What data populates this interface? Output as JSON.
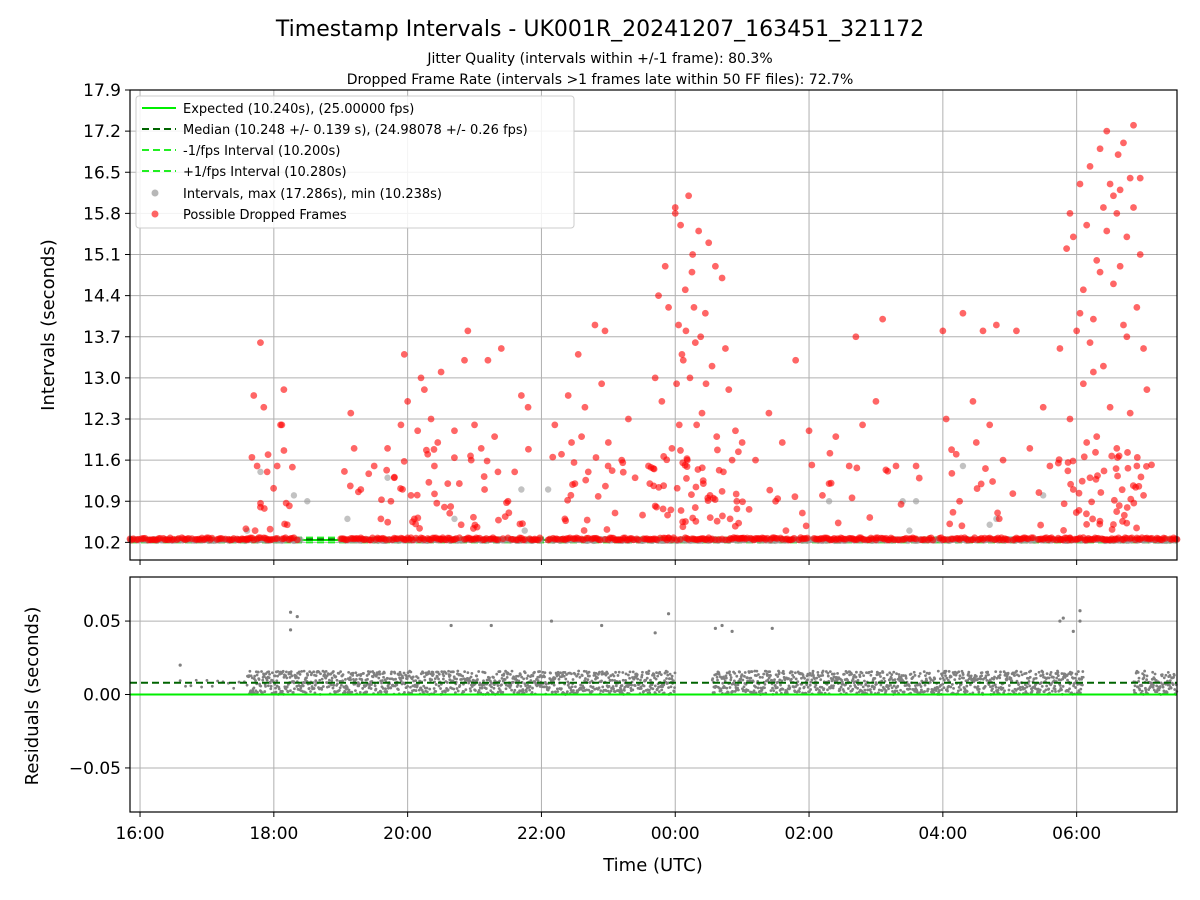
{
  "header": {
    "title": "Timestamp Intervals - UK001R_20241207_163451_321172",
    "subtitle_1": "Jitter Quality (intervals within +/-1 frame): 80.3%",
    "subtitle_2": "Dropped Frame Rate (intervals >1 frames late within 50 FF files): 72.7%"
  },
  "colors": {
    "expected": "#00ee00",
    "median": "#006400",
    "interval_band": "#22ee22",
    "intervals": "#999999",
    "dropped": "#ff0000",
    "residuals": "#808080",
    "grid": "#b0b0b0"
  },
  "chart_data": [
    {
      "type": "scatter",
      "panel": "intervals",
      "xlabel": "",
      "ylabel": "Intervals (seconds)",
      "ylim": [
        9.9,
        17.9
      ],
      "yticks": [
        "10.2",
        "10.9",
        "11.6",
        "12.3",
        "13.0",
        "13.7",
        "14.4",
        "15.1",
        "15.8",
        "16.5",
        "17.2",
        "17.9"
      ],
      "grid": true,
      "legend_placement": "top-left",
      "legend": [
        "Expected (10.240s), (25.00000 fps)",
        "Median (10.248 +/- 0.139 s), (24.98078 +/- 0.26 fps)",
        "-1/fps Interval (10.200s)",
        "+1/fps Interval (10.280s)",
        "Intervals, max (17.286s), min (10.238s)",
        "Possible Dropped Frames"
      ],
      "reference_lines": {
        "expected": 10.24,
        "median": 10.248,
        "minus_1_fps": 10.2,
        "plus_1_fps": 10.28
      },
      "summary": {
        "max_interval": 17.286,
        "min_interval": 10.238,
        "median_interval": 10.248,
        "median_std": 0.139,
        "median_fps": 24.98078,
        "median_fps_std": 0.26,
        "expected_fps": 25.0
      },
      "baseline_coverage_hours": [
        [
          15.85,
          17.6
        ],
        [
          17.6,
          18.4
        ],
        [
          19.0,
          20.5
        ],
        [
          20.5,
          22.0
        ],
        [
          22.1,
          23.9
        ],
        [
          23.9,
          25.0
        ],
        [
          25.0,
          27.0
        ],
        [
          27.0,
          27.9
        ],
        [
          27.95,
          29.9
        ],
        [
          29.9,
          31.0
        ],
        [
          31.0,
          31.5
        ]
      ],
      "dropped_frame_clusters": [
        {
          "center_hour": 18.0,
          "points": [
            [
              17.7,
              12.7
            ],
            [
              17.75,
              11.5
            ],
            [
              17.8,
              13.6
            ],
            [
              17.85,
              12.5
            ],
            [
              17.8,
              10.8
            ],
            [
              18.05,
              11.5
            ],
            [
              18.1,
              12.2
            ],
            [
              18.15,
              12.8
            ],
            [
              18.2,
              10.5
            ],
            [
              17.9,
              11.4
            ],
            [
              17.72,
              10.4
            ],
            [
              18.12,
              12.2
            ]
          ]
        },
        {
          "center_hour": 20.0,
          "points": [
            [
              19.15,
              12.4
            ],
            [
              19.2,
              11.8
            ],
            [
              19.3,
              11.1
            ],
            [
              19.5,
              11.5
            ],
            [
              19.6,
              10.6
            ],
            [
              19.7,
              11.8
            ],
            [
              19.8,
              11.3
            ],
            [
              19.9,
              12.2
            ],
            [
              19.95,
              13.4
            ],
            [
              20.0,
              12.6
            ],
            [
              20.05,
              11.0
            ],
            [
              20.1,
              10.6
            ],
            [
              20.15,
              12.1
            ],
            [
              20.2,
              13.0
            ],
            [
              20.3,
              11.7
            ],
            [
              20.35,
              12.3
            ],
            [
              20.4,
              11.5
            ],
            [
              20.5,
              13.1
            ],
            [
              20.55,
              10.8
            ],
            [
              20.6,
              11.2
            ],
            [
              20.7,
              12.1
            ],
            [
              20.8,
              10.5
            ],
            [
              20.85,
              13.3
            ],
            [
              20.9,
              13.8
            ],
            [
              21.0,
              12.2
            ],
            [
              21.1,
              11.8
            ],
            [
              21.2,
              13.3
            ],
            [
              21.3,
              12.0
            ],
            [
              21.4,
              13.5
            ],
            [
              21.5,
              10.9
            ],
            [
              21.6,
              11.4
            ],
            [
              21.7,
              12.7
            ],
            [
              21.8,
              12.5
            ],
            [
              21.35,
              11.4
            ],
            [
              20.25,
              12.8
            ],
            [
              19.75,
              10.9
            ],
            [
              20.45,
              11.9
            ],
            [
              20.95,
              11.6
            ],
            [
              21.15,
              11.1
            ]
          ]
        },
        {
          "center_hour": 22.5,
          "points": [
            [
              22.2,
              12.2
            ],
            [
              22.3,
              11.7
            ],
            [
              22.4,
              12.7
            ],
            [
              22.5,
              11.2
            ],
            [
              22.55,
              13.4
            ],
            [
              22.6,
              12.0
            ],
            [
              22.7,
              11.4
            ],
            [
              22.8,
              13.9
            ],
            [
              22.9,
              12.9
            ],
            [
              23.0,
              11.9
            ],
            [
              23.1,
              10.7
            ],
            [
              23.2,
              11.6
            ],
            [
              23.3,
              12.3
            ],
            [
              23.4,
              11.3
            ],
            [
              22.45,
              11.9
            ],
            [
              22.35,
              10.6
            ],
            [
              22.65,
              12.5
            ],
            [
              22.95,
              13.8
            ]
          ]
        },
        {
          "center_hour": 24.2,
          "points": [
            [
              23.6,
              11.5
            ],
            [
              23.7,
              13.0
            ],
            [
              23.75,
              14.4
            ],
            [
              23.8,
              12.6
            ],
            [
              23.85,
              14.9
            ],
            [
              23.9,
              14.2
            ],
            [
              23.95,
              11.8
            ],
            [
              24.0,
              15.8
            ],
            [
              24.05,
              13.9
            ],
            [
              24.08,
              15.6
            ],
            [
              24.1,
              13.4
            ],
            [
              24.15,
              14.5
            ],
            [
              24.2,
              16.1
            ],
            [
              24.25,
              14.8
            ],
            [
              24.3,
              13.6
            ],
            [
              24.35,
              15.5
            ],
            [
              24.4,
              12.4
            ],
            [
              24.45,
              14.1
            ],
            [
              24.5,
              15.3
            ],
            [
              24.55,
              13.2
            ],
            [
              24.6,
              14.9
            ],
            [
              24.7,
              14.7
            ],
            [
              24.75,
              13.5
            ],
            [
              24.8,
              12.8
            ],
            [
              24.85,
              11.6
            ],
            [
              24.9,
              12.1
            ],
            [
              25.0,
              11.9
            ],
            [
              24.0,
              15.9
            ],
            [
              24.12,
              13.3
            ],
            [
              24.22,
              13.0
            ],
            [
              24.32,
              12.2
            ],
            [
              24.42,
              11.2
            ],
            [
              23.62,
              11.2
            ],
            [
              23.72,
              10.8
            ],
            [
              24.02,
              12.9
            ],
            [
              24.18,
              11.6
            ],
            [
              24.28,
              14.2
            ],
            [
              24.38,
              13.7
            ],
            [
              24.52,
              11.0
            ],
            [
              24.62,
              12.0
            ],
            [
              24.72,
              11.4
            ],
            [
              24.82,
              10.6
            ],
            [
              24.92,
              10.9
            ],
            [
              24.06,
              12.2
            ],
            [
              24.16,
              13.8
            ],
            [
              24.26,
              15.1
            ],
            [
              24.46,
              12.9
            ]
          ]
        },
        {
          "center_hour": 26.0,
          "points": [
            [
              25.2,
              11.6
            ],
            [
              25.4,
              12.4
            ],
            [
              25.6,
              11.9
            ],
            [
              25.8,
              13.3
            ],
            [
              26.0,
              12.1
            ],
            [
              26.2,
              11.0
            ],
            [
              26.4,
              12.0
            ],
            [
              26.6,
              11.5
            ],
            [
              26.8,
              12.2
            ],
            [
              26.7,
              13.7
            ],
            [
              27.0,
              12.6
            ],
            [
              27.1,
              14.0
            ],
            [
              27.3,
              11.5
            ],
            [
              25.9,
              10.7
            ],
            [
              26.3,
              11.2
            ],
            [
              25.5,
              10.9
            ]
          ]
        },
        {
          "center_hour": 28.5,
          "points": [
            [
              27.6,
              11.5
            ],
            [
              28.0,
              13.8
            ],
            [
              28.05,
              12.3
            ],
            [
              28.2,
              11.7
            ],
            [
              28.3,
              14.1
            ],
            [
              28.5,
              11.9
            ],
            [
              28.6,
              13.8
            ],
            [
              28.8,
              13.9
            ],
            [
              28.9,
              11.6
            ],
            [
              28.7,
              12.2
            ],
            [
              28.45,
              12.6
            ],
            [
              28.25,
              10.9
            ]
          ]
        },
        {
          "center_hour": 30.0,
          "points": [
            [
              29.1,
              13.8
            ],
            [
              29.3,
              11.8
            ],
            [
              29.5,
              12.5
            ],
            [
              29.6,
              11.5
            ],
            [
              29.75,
              13.5
            ],
            [
              29.9,
              12.3
            ],
            [
              30.0,
              13.8
            ],
            [
              30.2,
              13.6
            ],
            [
              29.85,
              15.2
            ],
            [
              29.9,
              15.8
            ],
            [
              29.95,
              15.4
            ],
            [
              30.05,
              16.3
            ],
            [
              30.1,
              14.5
            ],
            [
              30.15,
              15.6
            ],
            [
              30.2,
              16.6
            ],
            [
              30.25,
              14.0
            ],
            [
              30.3,
              15.0
            ],
            [
              30.35,
              16.9
            ],
            [
              30.4,
              15.9
            ],
            [
              30.45,
              17.2
            ],
            [
              30.5,
              16.3
            ],
            [
              30.55,
              14.6
            ],
            [
              30.6,
              15.8
            ],
            [
              30.65,
              16.2
            ],
            [
              30.7,
              17.0
            ],
            [
              30.75,
              15.4
            ],
            [
              30.8,
              16.4
            ],
            [
              30.85,
              17.3
            ],
            [
              30.9,
              14.2
            ],
            [
              30.95,
              15.1
            ],
            [
              31.0,
              13.5
            ],
            [
              31.05,
              12.8
            ],
            [
              30.4,
              13.2
            ],
            [
              30.5,
              12.5
            ],
            [
              30.6,
              11.8
            ],
            [
              30.3,
              12.0
            ],
            [
              30.2,
              11.3
            ],
            [
              30.1,
              12.9
            ],
            [
              29.95,
              11.1
            ],
            [
              30.7,
              13.9
            ],
            [
              30.8,
              12.4
            ],
            [
              30.9,
              11.5
            ],
            [
              31.0,
              11.0
            ],
            [
              30.35,
              14.8
            ],
            [
              30.45,
              15.5
            ],
            [
              30.55,
              16.1
            ],
            [
              30.65,
              14.9
            ],
            [
              30.75,
              13.7
            ],
            [
              30.85,
              15.9
            ],
            [
              30.95,
              16.4
            ],
            [
              30.25,
              13.1
            ],
            [
              30.15,
              11.9
            ],
            [
              30.05,
              14.1
            ],
            [
              30.62,
              16.8
            ]
          ]
        }
      ],
      "notes_points_gray": [
        [
          17.6,
          10.4
        ],
        [
          17.8,
          11.4
        ],
        [
          18.3,
          11.0
        ],
        [
          18.5,
          10.9
        ],
        [
          19.1,
          10.6
        ],
        [
          19.7,
          11.3
        ],
        [
          20.7,
          10.6
        ],
        [
          21.7,
          11.1
        ],
        [
          21.75,
          10.4
        ],
        [
          22.1,
          11.1
        ],
        [
          26.3,
          10.9
        ],
        [
          27.4,
          10.9
        ],
        [
          27.6,
          10.9
        ],
        [
          27.5,
          10.4
        ],
        [
          28.3,
          11.5
        ],
        [
          28.7,
          10.5
        ],
        [
          28.8,
          10.6
        ],
        [
          29.5,
          11.0
        ]
      ]
    },
    {
      "type": "scatter",
      "panel": "residuals",
      "xlabel": "Time (UTC)",
      "ylabel": "Residuals (seconds)",
      "ylim": [
        -0.08,
        0.08
      ],
      "yticks": [
        "−0.05",
        "0.00",
        "0.05"
      ],
      "xticks": [
        "16:00",
        "18:00",
        "20:00",
        "22:00",
        "00:00",
        "02:00",
        "04:00",
        "06:00"
      ],
      "xlim_hours": [
        15.85,
        31.5
      ],
      "grid": true,
      "reference_lines": {
        "zero": 0.0,
        "median_offset": 0.008
      },
      "band": {
        "low": 0.0,
        "high": 0.016
      },
      "gaps_hours": [
        [
          16.65,
          17.6
        ],
        [
          24.0,
          24.55
        ],
        [
          30.1,
          30.85
        ]
      ],
      "outliers": [
        [
          16.6,
          0.02
        ],
        [
          18.25,
          0.056
        ],
        [
          18.25,
          0.044
        ],
        [
          18.35,
          0.053
        ],
        [
          20.65,
          0.047
        ],
        [
          21.25,
          0.047
        ],
        [
          22.15,
          0.05
        ],
        [
          22.9,
          0.047
        ],
        [
          23.7,
          0.042
        ],
        [
          23.9,
          0.055
        ],
        [
          24.6,
          0.045
        ],
        [
          24.7,
          0.047
        ],
        [
          24.85,
          0.043
        ],
        [
          25.45,
          0.045
        ],
        [
          29.75,
          0.05
        ],
        [
          29.8,
          0.052
        ],
        [
          29.95,
          0.043
        ],
        [
          30.05,
          0.057
        ],
        [
          30.05,
          0.05
        ]
      ]
    }
  ]
}
